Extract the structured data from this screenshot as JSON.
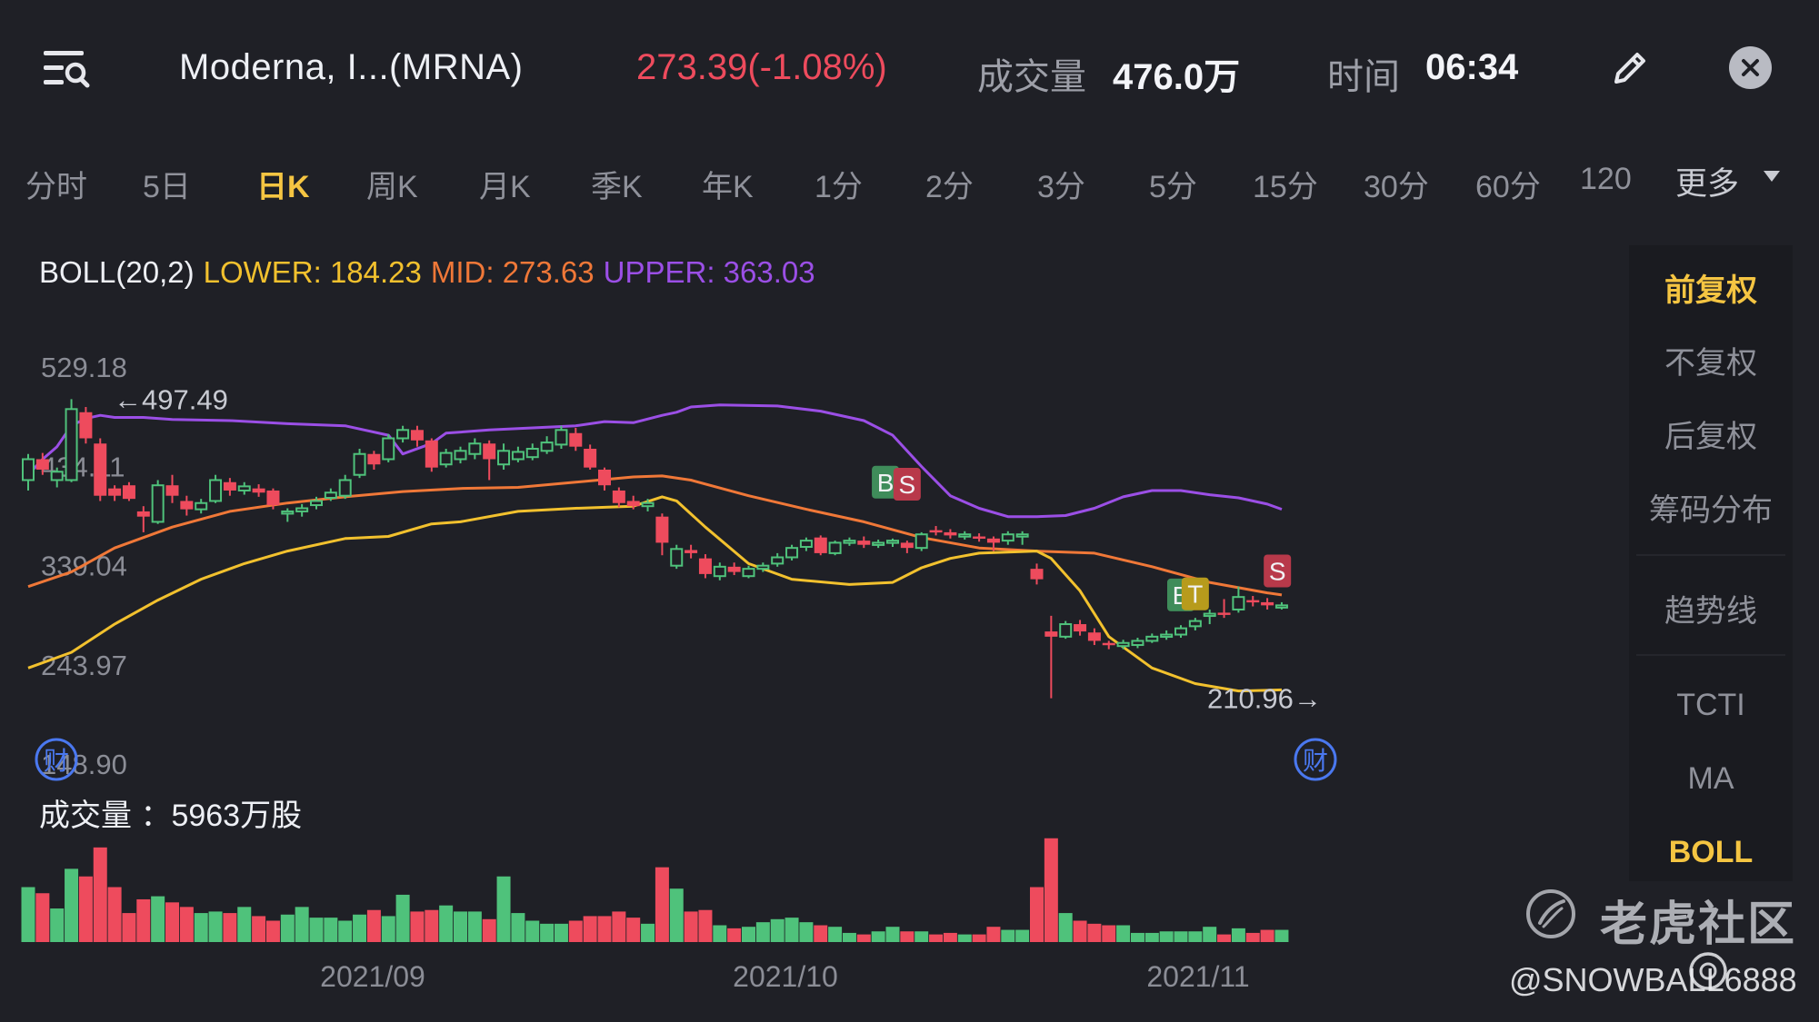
{
  "header": {
    "stock_name": "Moderna, I...(MRNA)",
    "price_change": "273.39(-1.08%)",
    "volume_label": "成交量",
    "volume_value": "476.0万",
    "time_label": "时间",
    "time_value": "06:34",
    "icons": {
      "menu": "menu-search-icon",
      "edit": "pencil-icon",
      "close": "close-icon"
    }
  },
  "tabs": [
    {
      "label": "分时",
      "active": false
    },
    {
      "label": "5日",
      "active": false
    },
    {
      "label": "日K",
      "active": true
    },
    {
      "label": "周K",
      "active": false
    },
    {
      "label": "月K",
      "active": false
    },
    {
      "label": "季K",
      "active": false
    },
    {
      "label": "年K",
      "active": false
    },
    {
      "label": "1分",
      "active": false
    },
    {
      "label": "2分",
      "active": false
    },
    {
      "label": "3分",
      "active": false
    },
    {
      "label": "5分",
      "active": false
    },
    {
      "label": "15分",
      "active": false
    },
    {
      "label": "30分",
      "active": false
    },
    {
      "label": "60分",
      "active": false
    },
    {
      "label": "120",
      "active": false
    }
  ],
  "more_label": "更多",
  "indicator": {
    "name": "BOLL(20,2)",
    "lower": "LOWER: 184.23",
    "mid": "MID: 273.63",
    "upper": "UPPER: 363.03"
  },
  "side_panel": {
    "items": [
      "前复权",
      "不复权",
      "后复权",
      "筹码分布",
      "趋势线",
      "TCTI",
      "MA",
      "BOLL"
    ],
    "active": [
      "前复权",
      "BOLL"
    ]
  },
  "volume_caption": "成交量 ：5963万股",
  "watermark": {
    "text": "老虎社区",
    "user": "@SNOWBALL6888"
  },
  "colors": {
    "background": "#1f2026",
    "up": "#4fc27b",
    "down": "#ee4b5d",
    "upper_band": "#9b4fe6",
    "mid_band": "#f07838",
    "lower_band": "#f2c12e",
    "active_tab": "#f5c542"
  },
  "chart_data": {
    "type": "candlestick",
    "ylim": [
      148.9,
      529.18
    ],
    "y_ticks": [
      "529.18",
      "434.11",
      "339.04",
      "243.97",
      "148.90"
    ],
    "x_ticks": [
      "2021/09",
      "2021/10",
      "2021/11"
    ],
    "annotations": {
      "high": "←497.49",
      "low": "210.96→",
      "earnings_marker": "财",
      "trade_markers": [
        "B",
        "S",
        "B",
        "T",
        "S"
      ]
    },
    "candles": [
      {
        "o": 420,
        "c": 440,
        "h": 445,
        "l": 410
      },
      {
        "o": 440,
        "c": 430,
        "h": 446,
        "l": 425
      },
      {
        "o": 420,
        "c": 428,
        "h": 432,
        "l": 413
      },
      {
        "o": 420,
        "c": 488,
        "h": 497.5,
        "l": 418
      },
      {
        "o": 485,
        "c": 460,
        "h": 490,
        "l": 455
      },
      {
        "o": 455,
        "c": 405,
        "h": 460,
        "l": 400
      },
      {
        "o": 412,
        "c": 405,
        "h": 415,
        "l": 400
      },
      {
        "o": 415,
        "c": 402,
        "h": 418,
        "l": 400
      },
      {
        "o": 390,
        "c": 385,
        "h": 395,
        "l": 370
      },
      {
        "o": 380,
        "c": 415,
        "h": 420,
        "l": 378
      },
      {
        "o": 415,
        "c": 405,
        "h": 425,
        "l": 398
      },
      {
        "o": 400,
        "c": 392,
        "h": 405,
        "l": 386
      },
      {
        "o": 392,
        "c": 398,
        "h": 402,
        "l": 388
      },
      {
        "o": 400,
        "c": 420,
        "h": 425,
        "l": 398
      },
      {
        "o": 418,
        "c": 410,
        "h": 422,
        "l": 405
      },
      {
        "o": 410,
        "c": 414,
        "h": 418,
        "l": 406
      },
      {
        "o": 412,
        "c": 408,
        "h": 416,
        "l": 404
      },
      {
        "o": 410,
        "c": 396,
        "h": 412,
        "l": 392
      },
      {
        "o": 388,
        "c": 390,
        "h": 393,
        "l": 380
      },
      {
        "o": 390,
        "c": 393,
        "h": 397,
        "l": 385
      },
      {
        "o": 396,
        "c": 400,
        "h": 404,
        "l": 392
      },
      {
        "o": 403,
        "c": 408,
        "h": 412,
        "l": 400
      },
      {
        "o": 405,
        "c": 420,
        "h": 425,
        "l": 402
      },
      {
        "o": 425,
        "c": 445,
        "h": 450,
        "l": 422
      },
      {
        "o": 445,
        "c": 435,
        "h": 448,
        "l": 430
      },
      {
        "o": 440,
        "c": 460,
        "h": 464,
        "l": 437
      },
      {
        "o": 460,
        "c": 468,
        "h": 472,
        "l": 456
      },
      {
        "o": 468,
        "c": 458,
        "h": 472,
        "l": 452
      },
      {
        "o": 458,
        "c": 432,
        "h": 460,
        "l": 428
      },
      {
        "o": 435,
        "c": 446,
        "h": 450,
        "l": 432
      },
      {
        "o": 440,
        "c": 448,
        "h": 452,
        "l": 436
      },
      {
        "o": 445,
        "c": 455,
        "h": 460,
        "l": 440
      },
      {
        "o": 455,
        "c": 440,
        "h": 458,
        "l": 420
      },
      {
        "o": 435,
        "c": 448,
        "h": 455,
        "l": 430
      },
      {
        "o": 440,
        "c": 447,
        "h": 452,
        "l": 437
      },
      {
        "o": 442,
        "c": 450,
        "h": 455,
        "l": 439
      },
      {
        "o": 448,
        "c": 456,
        "h": 462,
        "l": 445
      },
      {
        "o": 454,
        "c": 468,
        "h": 472,
        "l": 450
      },
      {
        "o": 465,
        "c": 452,
        "h": 470,
        "l": 448
      },
      {
        "o": 450,
        "c": 432,
        "h": 454,
        "l": 430
      },
      {
        "o": 430,
        "c": 415,
        "h": 432,
        "l": 410
      },
      {
        "o": 410,
        "c": 398,
        "h": 413,
        "l": 394
      },
      {
        "o": 400,
        "c": 395,
        "h": 405,
        "l": 392
      },
      {
        "o": 395,
        "c": 398,
        "h": 402,
        "l": 390
      },
      {
        "o": 385,
        "c": 360,
        "h": 388,
        "l": 348
      },
      {
        "o": 338,
        "c": 354,
        "h": 358,
        "l": 335
      },
      {
        "o": 353,
        "c": 350,
        "h": 358,
        "l": 345
      },
      {
        "o": 345,
        "c": 330,
        "h": 349,
        "l": 326
      },
      {
        "o": 328,
        "c": 337,
        "h": 341,
        "l": 324
      },
      {
        "o": 337,
        "c": 332,
        "h": 341,
        "l": 329
      },
      {
        "o": 328,
        "c": 335,
        "h": 338,
        "l": 326
      },
      {
        "o": 335,
        "c": 338,
        "h": 341,
        "l": 332
      },
      {
        "o": 340,
        "c": 346,
        "h": 350,
        "l": 337
      },
      {
        "o": 346,
        "c": 355,
        "h": 358,
        "l": 343
      },
      {
        "o": 356,
        "c": 362,
        "h": 365,
        "l": 352
      },
      {
        "o": 365,
        "c": 350,
        "h": 367,
        "l": 348
      },
      {
        "o": 350,
        "c": 360,
        "h": 362,
        "l": 348
      },
      {
        "o": 360,
        "c": 362,
        "h": 365,
        "l": 357
      },
      {
        "o": 362,
        "c": 358,
        "h": 366,
        "l": 355
      },
      {
        "o": 358,
        "c": 360,
        "h": 363,
        "l": 355
      },
      {
        "o": 360,
        "c": 362,
        "h": 364,
        "l": 356
      },
      {
        "o": 360,
        "c": 355,
        "h": 362,
        "l": 350
      },
      {
        "o": 355,
        "c": 368,
        "h": 370,
        "l": 352
      },
      {
        "o": 372,
        "c": 370,
        "h": 376,
        "l": 367
      },
      {
        "o": 370,
        "c": 367,
        "h": 373,
        "l": 364
      },
      {
        "o": 366,
        "c": 368,
        "h": 371,
        "l": 363
      },
      {
        "o": 366,
        "c": 365,
        "h": 369,
        "l": 361
      },
      {
        "o": 364,
        "c": 360,
        "h": 366,
        "l": 352
      },
      {
        "o": 362,
        "c": 368,
        "h": 371,
        "l": 358
      },
      {
        "o": 368,
        "c": 368,
        "h": 371,
        "l": 358
      },
      {
        "o": 335,
        "c": 325,
        "h": 340,
        "l": 320
      },
      {
        "o": 275,
        "c": 270,
        "h": 290,
        "l": 211
      },
      {
        "o": 270,
        "c": 282,
        "h": 285,
        "l": 268
      },
      {
        "o": 282,
        "c": 275,
        "h": 286,
        "l": 271
      },
      {
        "o": 274,
        "c": 266,
        "h": 278,
        "l": 262
      },
      {
        "o": 264,
        "c": 262,
        "h": 266,
        "l": 258
      },
      {
        "o": 261,
        "c": 264,
        "h": 267,
        "l": 258
      },
      {
        "o": 262,
        "c": 266,
        "h": 269,
        "l": 259
      },
      {
        "o": 266,
        "c": 270,
        "h": 273,
        "l": 264
      },
      {
        "o": 270,
        "c": 272,
        "h": 276,
        "l": 267
      },
      {
        "o": 272,
        "c": 278,
        "h": 281,
        "l": 269
      },
      {
        "o": 280,
        "c": 285,
        "h": 288,
        "l": 276
      },
      {
        "o": 292,
        "c": 292,
        "h": 296,
        "l": 282
      },
      {
        "o": 293,
        "c": 292,
        "h": 306,
        "l": 288
      },
      {
        "o": 296,
        "c": 308,
        "h": 318,
        "l": 293
      },
      {
        "o": 305,
        "c": 303,
        "h": 309,
        "l": 299
      },
      {
        "o": 303,
        "c": 300,
        "h": 307,
        "l": 296
      },
      {
        "o": 300,
        "c": 300,
        "h": 303,
        "l": 296
      }
    ],
    "boll_upper": [
      [
        0,
        425
      ],
      [
        1,
        440
      ],
      [
        2,
        452
      ],
      [
        3,
        472
      ],
      [
        4,
        479
      ],
      [
        5,
        482
      ],
      [
        6,
        480
      ],
      [
        7,
        480
      ],
      [
        8,
        480
      ],
      [
        10,
        478
      ],
      [
        14,
        477
      ],
      [
        18,
        474
      ],
      [
        22,
        472
      ],
      [
        25,
        463
      ],
      [
        26,
        445
      ],
      [
        28,
        455
      ],
      [
        29,
        465
      ],
      [
        32,
        468
      ],
      [
        35,
        470
      ],
      [
        38,
        472
      ],
      [
        40,
        476
      ],
      [
        42,
        475
      ],
      [
        44,
        482
      ],
      [
        45,
        485
      ],
      [
        46,
        490
      ],
      [
        48,
        492
      ],
      [
        52,
        491
      ],
      [
        55,
        486
      ],
      [
        58,
        477
      ],
      [
        60,
        463
      ],
      [
        62,
        433
      ],
      [
        64,
        405
      ],
      [
        66,
        393
      ],
      [
        68,
        385
      ],
      [
        70,
        385
      ],
      [
        72,
        386
      ],
      [
        74,
        393
      ],
      [
        76,
        404
      ],
      [
        78,
        410
      ],
      [
        80,
        410
      ],
      [
        82,
        406
      ],
      [
        84,
        403
      ],
      [
        86,
        397
      ],
      [
        87,
        392
      ]
    ],
    "boll_mid": [
      [
        0,
        318
      ],
      [
        3,
        332
      ],
      [
        6,
        355
      ],
      [
        10,
        375
      ],
      [
        14,
        390
      ],
      [
        18,
        398
      ],
      [
        22,
        404
      ],
      [
        26,
        409
      ],
      [
        30,
        412
      ],
      [
        34,
        413
      ],
      [
        38,
        418
      ],
      [
        42,
        423
      ],
      [
        44,
        424
      ],
      [
        46,
        420
      ],
      [
        50,
        405
      ],
      [
        54,
        392
      ],
      [
        58,
        380
      ],
      [
        62,
        365
      ],
      [
        66,
        355
      ],
      [
        70,
        352
      ],
      [
        74,
        350
      ],
      [
        78,
        337
      ],
      [
        82,
        322
      ],
      [
        86,
        312
      ],
      [
        87,
        310
      ]
    ],
    "boll_lower": [
      [
        0,
        240
      ],
      [
        3,
        255
      ],
      [
        6,
        282
      ],
      [
        9,
        305
      ],
      [
        12,
        325
      ],
      [
        15,
        340
      ],
      [
        18,
        352
      ],
      [
        22,
        364
      ],
      [
        25,
        366
      ],
      [
        28,
        378
      ],
      [
        30,
        380
      ],
      [
        34,
        390
      ],
      [
        38,
        393
      ],
      [
        42,
        395
      ],
      [
        44,
        404
      ],
      [
        45,
        400
      ],
      [
        47,
        375
      ],
      [
        50,
        340
      ],
      [
        53,
        325
      ],
      [
        57,
        320
      ],
      [
        60,
        322
      ],
      [
        62,
        336
      ],
      [
        64,
        345
      ],
      [
        66,
        350
      ],
      [
        68,
        351
      ],
      [
        70,
        352
      ],
      [
        71,
        345
      ],
      [
        73,
        314
      ],
      [
        75,
        270
      ],
      [
        78,
        240
      ],
      [
        81,
        225
      ],
      [
        84,
        218
      ],
      [
        87,
        219
      ]
    ],
    "volumes": [
      36,
      32,
      22,
      48,
      43,
      62,
      36,
      19,
      28,
      30,
      26,
      23,
      19,
      20,
      19,
      23,
      17,
      14,
      18,
      23,
      16,
      16,
      14,
      18,
      21,
      17,
      31,
      20,
      21,
      24,
      20,
      20,
      15,
      43,
      19,
      14,
      12,
      12,
      14,
      17,
      17,
      20,
      16,
      12,
      49,
      35,
      20,
      21,
      11,
      9,
      10,
      13,
      15,
      16,
      13,
      11,
      10,
      6,
      5,
      7,
      10,
      7,
      7,
      5,
      6,
      5,
      5,
      10,
      8,
      8,
      36,
      68,
      19,
      14,
      12,
      11,
      11,
      6,
      6,
      7,
      7,
      7,
      10,
      5,
      9,
      6,
      8,
      8
    ]
  }
}
